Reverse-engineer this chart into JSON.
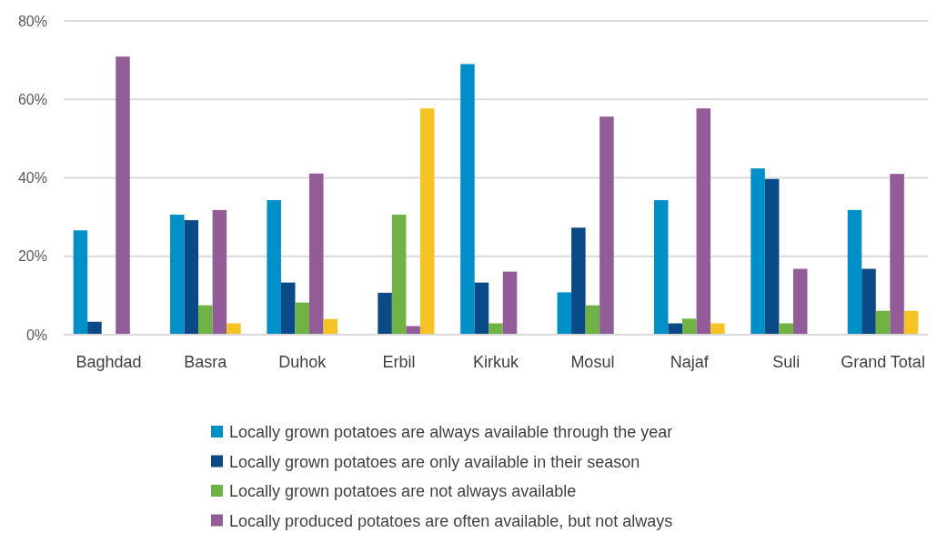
{
  "chart_data": {
    "type": "bar",
    "categories": [
      "Baghdad",
      "Basra",
      "Duhok",
      "Erbil",
      "Kirkuk",
      "Mosul",
      "Najaf",
      "Suli",
      "Grand Total"
    ],
    "series": [
      {
        "name": "Locally grown potatoes are always available through the year",
        "color": "#0090c8",
        "values": [
          26.6,
          30.6,
          34.3,
          null,
          69.0,
          10.8,
          34.3,
          42.4,
          31.8
        ]
      },
      {
        "name": "Locally grown potatoes are only available in their season",
        "color": "#0a4a86",
        "values": [
          3.3,
          29.2,
          13.3,
          10.7,
          13.3,
          27.3,
          2.9,
          39.7,
          16.8
        ]
      },
      {
        "name": "Locally grown potatoes are not always available",
        "color": "#70b244",
        "values": [
          null,
          7.5,
          8.2,
          30.6,
          2.9,
          7.5,
          4.1,
          2.9,
          6.1
        ]
      },
      {
        "name": "Locally produced potatoes are often available, but not always",
        "color": "#925c99",
        "values": [
          70.9,
          31.8,
          41.1,
          2.2,
          16.1,
          55.6,
          57.7,
          16.8,
          41.0
        ]
      },
      {
        "color": "#f6c324",
        "values": [
          null,
          2.9,
          4.0,
          57.7,
          null,
          null,
          2.9,
          null,
          6.1
        ]
      }
    ],
    "ylim": [
      0,
      80
    ],
    "yticks": [
      {
        "value": 0,
        "label": "0%"
      },
      {
        "value": 20,
        "label": "20%"
      },
      {
        "value": 40,
        "label": "40%"
      },
      {
        "value": 60,
        "label": "60%"
      },
      {
        "value": 80,
        "label": "80%"
      }
    ],
    "grid": "y",
    "legend": "bottom"
  }
}
